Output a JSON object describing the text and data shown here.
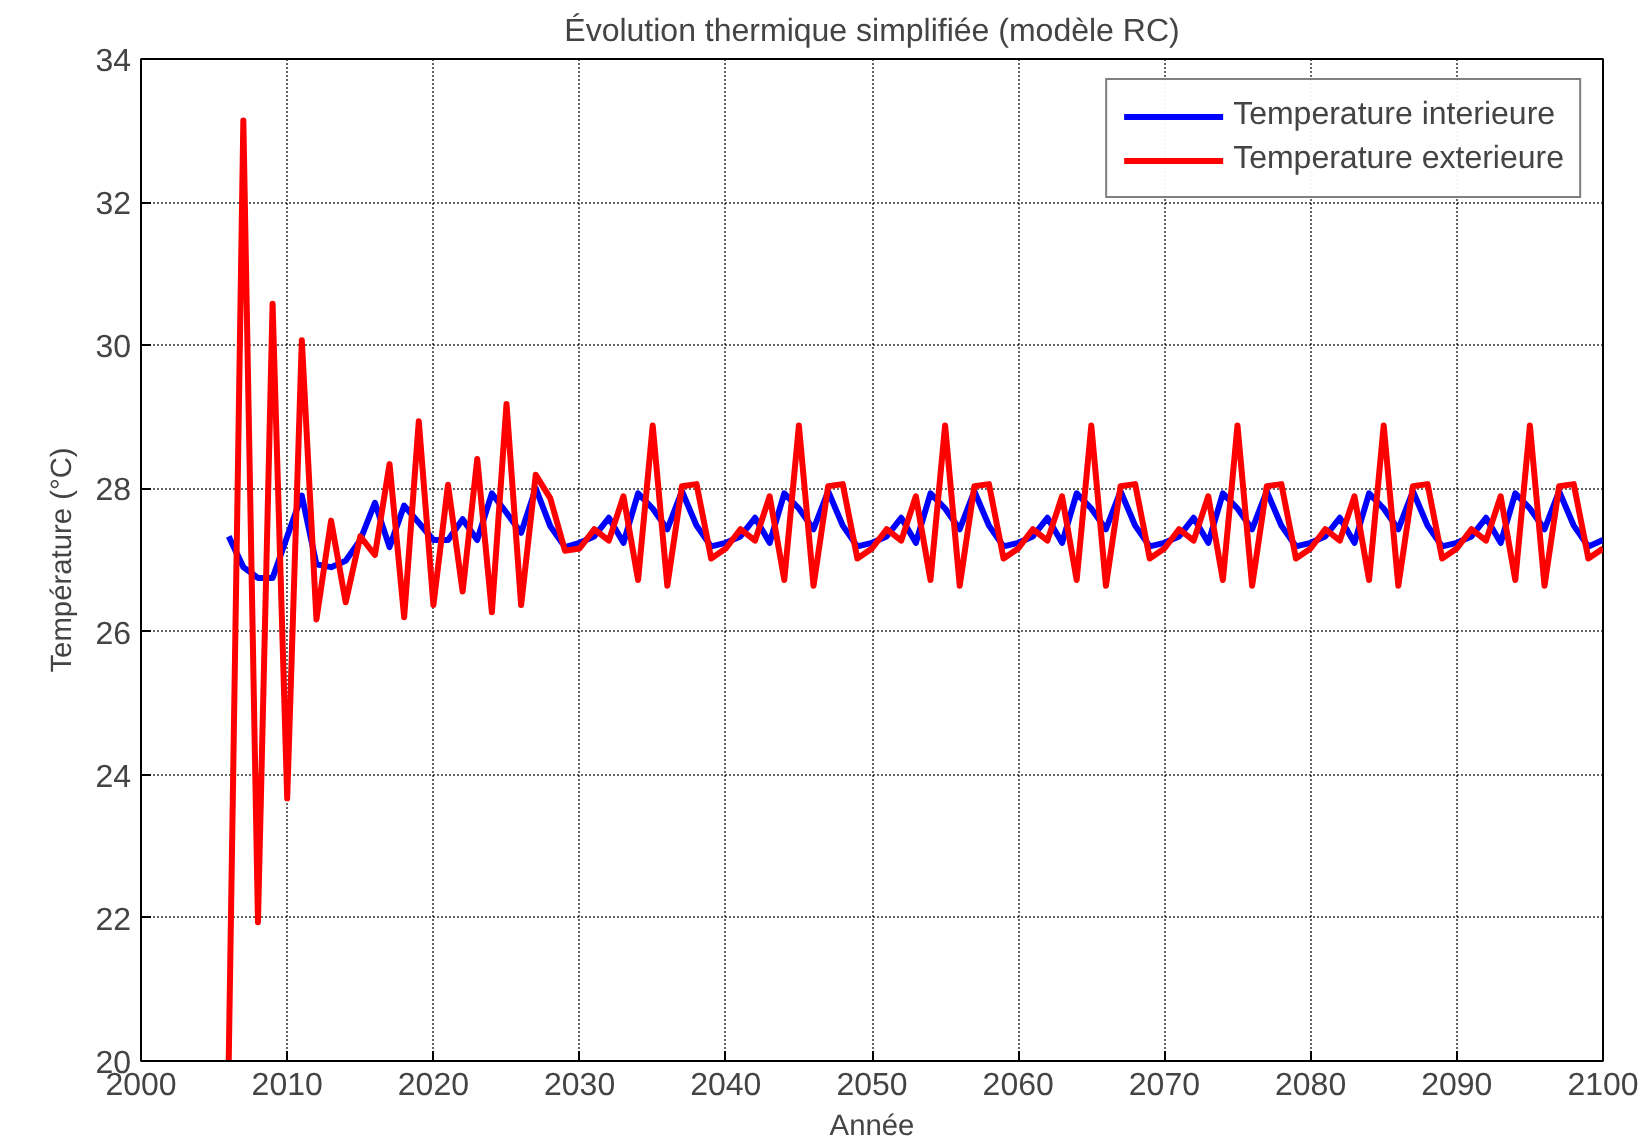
{
  "chart_data": {
    "type": "line",
    "title": "Évolution thermique simplifiée (modèle RC)",
    "xlabel": "Année",
    "ylabel": "Température (°C)",
    "x": [
      2006,
      2007,
      2008,
      2009,
      2010,
      2011,
      2012,
      2013,
      2014,
      2015,
      2016,
      2017,
      2018,
      2019,
      2020,
      2021,
      2022,
      2023,
      2024,
      2025,
      2026,
      2027,
      2028,
      2029,
      2030,
      2031,
      2032,
      2033,
      2034,
      2035,
      2036,
      2037,
      2038,
      2039,
      2040,
      2041,
      2042,
      2043,
      2044,
      2045,
      2046,
      2047,
      2048,
      2049,
      2050,
      2051,
      2052,
      2053,
      2054,
      2055,
      2056,
      2057,
      2058,
      2059,
      2060,
      2061,
      2062,
      2063,
      2064,
      2065,
      2066,
      2067,
      2068,
      2069,
      2070,
      2071,
      2072,
      2073,
      2074,
      2075,
      2076,
      2077,
      2078,
      2079,
      2080,
      2081,
      2082,
      2083,
      2084,
      2085,
      2086,
      2087,
      2088,
      2089,
      2090,
      2091,
      2092,
      2093,
      2094,
      2095,
      2096,
      2097,
      2098,
      2099,
      2100
    ],
    "series": [
      {
        "name": "Temperature interieure",
        "color": "#0000ff",
        "values": [
          27.33,
          26.9,
          26.75,
          26.75,
          27.33,
          27.9,
          26.94,
          26.9,
          26.99,
          27.28,
          27.8,
          27.18,
          27.76,
          27.52,
          27.28,
          27.28,
          27.57,
          27.28,
          27.93,
          27.66,
          27.38,
          28.0,
          27.47,
          27.18,
          27.24,
          27.33,
          27.59,
          27.24,
          27.93,
          27.72,
          27.43,
          27.96,
          27.48,
          27.19,
          27.24,
          27.33,
          27.59,
          27.24,
          27.93,
          27.72,
          27.43,
          27.96,
          27.48,
          27.19,
          27.24,
          27.33,
          27.59,
          27.24,
          27.93,
          27.72,
          27.43,
          27.96,
          27.48,
          27.19,
          27.24,
          27.33,
          27.59,
          27.24,
          27.93,
          27.72,
          27.43,
          27.96,
          27.48,
          27.19,
          27.24,
          27.33,
          27.59,
          27.24,
          27.93,
          27.72,
          27.43,
          27.96,
          27.48,
          27.19,
          27.24,
          27.33,
          27.59,
          27.24,
          27.93,
          27.72,
          27.43,
          27.96,
          27.48,
          27.19,
          27.24,
          27.33,
          27.59,
          27.24,
          27.93,
          27.72,
          27.43,
          27.96,
          27.48,
          27.19,
          27.28
        ]
      },
      {
        "name": "Temperature exterieure",
        "color": "#ff0000",
        "values": [
          20.0,
          33.14,
          21.94,
          30.58,
          23.67,
          30.07,
          26.17,
          27.55,
          26.41,
          27.33,
          27.07,
          28.34,
          26.2,
          28.94,
          26.37,
          28.05,
          26.56,
          28.41,
          26.27,
          29.18,
          26.37,
          28.19,
          27.86,
          27.13,
          27.16,
          27.43,
          27.27,
          27.89,
          26.72,
          28.88,
          26.64,
          28.03,
          28.06,
          27.02,
          27.16,
          27.43,
          27.27,
          27.89,
          26.72,
          28.88,
          26.64,
          28.03,
          28.06,
          27.02,
          27.16,
          27.43,
          27.27,
          27.89,
          26.72,
          28.88,
          26.64,
          28.03,
          28.06,
          27.02,
          27.16,
          27.43,
          27.27,
          27.89,
          26.72,
          28.88,
          26.64,
          28.03,
          28.06,
          27.02,
          27.16,
          27.43,
          27.27,
          27.89,
          26.72,
          28.88,
          26.64,
          28.03,
          28.06,
          27.02,
          27.16,
          27.43,
          27.27,
          27.89,
          26.72,
          28.88,
          26.64,
          28.03,
          28.06,
          27.02,
          27.16,
          27.43,
          27.27,
          27.89,
          26.72,
          28.88,
          26.64,
          28.03,
          28.06,
          27.02,
          27.16
        ]
      }
    ],
    "xlim": [
      2000,
      2100
    ],
    "xticks": [
      2000,
      2010,
      2020,
      2030,
      2040,
      2050,
      2060,
      2070,
      2080,
      2090,
      2100
    ],
    "ylim": [
      20,
      34
    ],
    "yticks": [
      20,
      22,
      24,
      26,
      28,
      30,
      32,
      34
    ],
    "grid": true,
    "legend": "top right",
    "line_style": "solid",
    "marker": "none"
  }
}
